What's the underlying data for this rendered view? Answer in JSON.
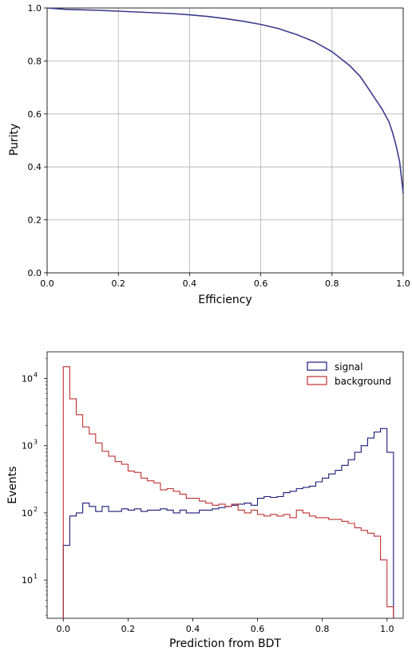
{
  "chart_data": [
    {
      "type": "line",
      "xlabel": "Efficiency",
      "ylabel": "Purity",
      "xlim": [
        0.0,
        1.0
      ],
      "ylim": [
        0.0,
        1.0
      ],
      "xticks": [
        "0.0",
        "0.2",
        "0.4",
        "0.6",
        "0.8",
        "1.0"
      ],
      "yticks": [
        "0.0",
        "0.2",
        "0.4",
        "0.6",
        "0.8",
        "1.0"
      ],
      "grid": true,
      "series": [
        {
          "color": "#3b3b8f",
          "x": [
            0.0,
            0.02,
            0.05,
            0.1,
            0.15,
            0.2,
            0.25,
            0.3,
            0.35,
            0.4,
            0.45,
            0.5,
            0.55,
            0.6,
            0.65,
            0.7,
            0.75,
            0.8,
            0.85,
            0.88,
            0.9,
            0.92,
            0.94,
            0.96,
            0.97,
            0.98,
            0.99,
            0.995,
            1.0
          ],
          "y": [
            1.0,
            0.998,
            0.995,
            0.993,
            0.991,
            0.988,
            0.985,
            0.982,
            0.979,
            0.974,
            0.968,
            0.96,
            0.95,
            0.938,
            0.922,
            0.9,
            0.873,
            0.835,
            0.782,
            0.74,
            0.7,
            0.66,
            0.62,
            0.57,
            0.53,
            0.48,
            0.42,
            0.36,
            0.3
          ]
        }
      ]
    },
    {
      "type": "histogram",
      "xlabel": "Prediction from BDT",
      "ylabel": "Events",
      "yscale": "log",
      "xlim": [
        -0.05,
        1.05
      ],
      "ylim": [
        2.7,
        25000
      ],
      "xticks": [
        "0.0",
        "0.2",
        "0.4",
        "0.6",
        "0.8",
        "1.0"
      ],
      "yticks": [
        {
          "base": "10",
          "exp": "1",
          "value": 10
        },
        {
          "base": "10",
          "exp": "2",
          "value": 100
        },
        {
          "base": "10",
          "exp": "3",
          "value": 1000
        },
        {
          "base": "10",
          "exp": "4",
          "value": 10000
        }
      ],
      "bin_edges_start": 0.0,
      "bin_width": 0.02,
      "grid": false,
      "legend_position": "top-right",
      "series": [
        {
          "name": "signal",
          "color": "#1a1a7a",
          "values": [
            33,
            90,
            100,
            140,
            125,
            105,
            125,
            105,
            105,
            115,
            110,
            115,
            105,
            110,
            110,
            115,
            110,
            100,
            110,
            100,
            100,
            110,
            110,
            115,
            120,
            125,
            130,
            135,
            140,
            130,
            165,
            175,
            170,
            175,
            200,
            210,
            230,
            240,
            250,
            290,
            330,
            380,
            430,
            510,
            620,
            800,
            1000,
            1300,
            1600,
            1800,
            800
          ]
        },
        {
          "name": "background",
          "color": "#c03030",
          "values": [
            15000,
            5000,
            2900,
            1900,
            1500,
            1100,
            830,
            700,
            580,
            530,
            420,
            400,
            330,
            300,
            280,
            220,
            230,
            210,
            190,
            165,
            165,
            150,
            140,
            130,
            135,
            125,
            135,
            110,
            100,
            110,
            95,
            90,
            95,
            90,
            95,
            85,
            110,
            100,
            90,
            85,
            85,
            80,
            80,
            75,
            70,
            60,
            55,
            50,
            45,
            20,
            4
          ]
        }
      ]
    }
  ]
}
